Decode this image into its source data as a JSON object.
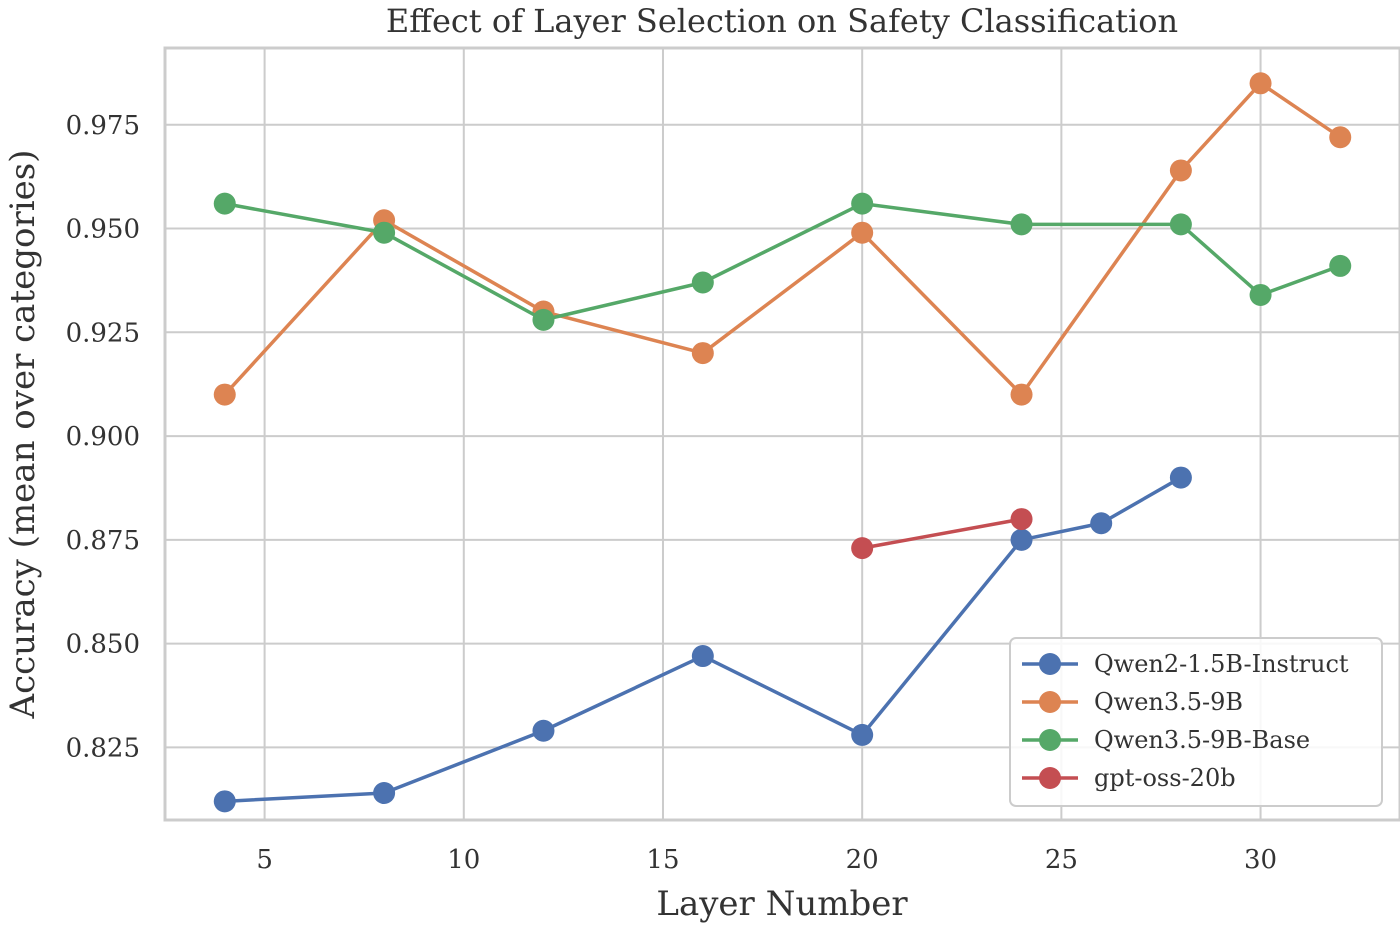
{
  "chart_data": {
    "type": "line",
    "title": "Effect of Layer Selection on Safety Classification",
    "xlabel": "Layer Number",
    "ylabel": "Accuracy (mean over categories)",
    "xlim": [
      2.5,
      33.5
    ],
    "ylim": [
      0.8075,
      0.9935
    ],
    "xticks": [
      5,
      10,
      15,
      20,
      25,
      30
    ],
    "yticks": [
      0.825,
      0.85,
      0.875,
      0.9,
      0.925,
      0.95,
      0.975
    ],
    "xtick_labels": [
      "5",
      "10",
      "15",
      "20",
      "25",
      "30"
    ],
    "ytick_labels": [
      "0.825",
      "0.850",
      "0.875",
      "0.900",
      "0.925",
      "0.950",
      "0.975"
    ],
    "grid": true,
    "legend_position": "lower-right",
    "series": [
      {
        "name": "Qwen2-1.5B-Instruct",
        "color": "#4C72B0",
        "points": [
          [
            4,
            0.812
          ],
          [
            8,
            0.814
          ],
          [
            12,
            0.829
          ],
          [
            16,
            0.847
          ],
          [
            20,
            0.828
          ],
          [
            24,
            0.875
          ],
          [
            26,
            0.879
          ],
          [
            28,
            0.89
          ]
        ]
      },
      {
        "name": "Qwen3.5-9B",
        "color": "#DD8452",
        "points": [
          [
            4,
            0.91
          ],
          [
            8,
            0.952
          ],
          [
            12,
            0.93
          ],
          [
            16,
            0.92
          ],
          [
            20,
            0.949
          ],
          [
            24,
            0.91
          ],
          [
            28,
            0.964
          ],
          [
            30,
            0.985
          ],
          [
            32,
            0.972
          ]
        ]
      },
      {
        "name": "Qwen3.5-9B-Base",
        "color": "#55A868",
        "points": [
          [
            4,
            0.956
          ],
          [
            8,
            0.949
          ],
          [
            12,
            0.928
          ],
          [
            16,
            0.937
          ],
          [
            20,
            0.956
          ],
          [
            24,
            0.951
          ],
          [
            28,
            0.951
          ],
          [
            30,
            0.934
          ],
          [
            32,
            0.941
          ]
        ]
      },
      {
        "name": "gpt-oss-20b",
        "color": "#C44E52",
        "points": [
          [
            20,
            0.873
          ],
          [
            24,
            0.88
          ]
        ]
      }
    ]
  }
}
